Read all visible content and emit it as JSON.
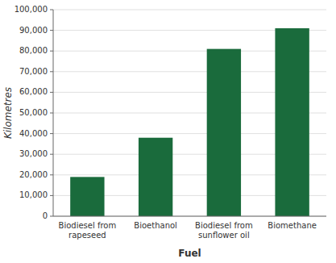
{
  "chart_data": {
    "type": "bar",
    "categories": [
      "Biodiesel from\nrapeseed",
      "Bioethanol",
      "Biodiesel from\nsunflower oil",
      "Biomethane"
    ],
    "values": [
      19000,
      38000,
      81000,
      91000
    ],
    "color": "#1a6b3c",
    "xlabel": "Fuel",
    "ylabel": "Kilometres",
    "ylim": [
      0,
      100000
    ],
    "yticks": [
      0,
      {
        "value": 10000,
        "label": "10,000"
      },
      {
        "value": 20000,
        "label": "20,000"
      },
      {
        "value": 30000,
        "label": "30,000"
      },
      {
        "value": 40000,
        "label": "40,000"
      },
      {
        "value": 50000,
        "label": "50,000"
      },
      {
        "value": 60000,
        "label": "60,000"
      },
      {
        "value": 70000,
        "label": "70,000"
      },
      {
        "value": 80000,
        "label": "80,000"
      },
      {
        "value": 90000,
        "label": "90,000"
      },
      {
        "value": 100000,
        "label": "100,000"
      }
    ],
    "grid": true
  }
}
